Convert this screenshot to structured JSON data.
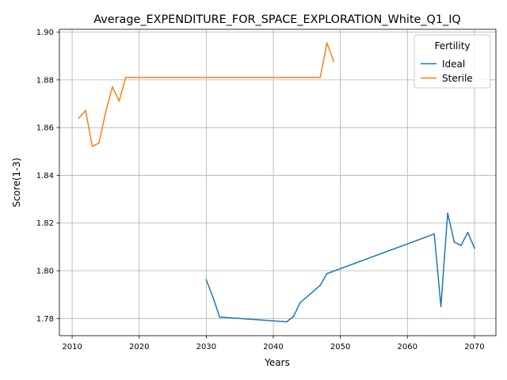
{
  "chart_data": {
    "type": "line",
    "title": "Average_EXPENDITURE_FOR_SPACE_EXPLORATION_White_Q1_IQ",
    "xlabel": "Years",
    "ylabel": "Score(1-3)",
    "xlim": [
      2008.1,
      2073.2
    ],
    "ylim": [
      1.7728,
      1.9012
    ],
    "xticks": [
      2010,
      2020,
      2030,
      2040,
      2050,
      2060,
      2070
    ],
    "yticks": [
      1.78,
      1.8,
      1.82,
      1.84,
      1.86,
      1.88,
      1.9
    ],
    "ytick_labels": [
      "1.78",
      "1.80",
      "1.82",
      "1.84",
      "1.86",
      "1.88",
      "1.90"
    ],
    "grid": true,
    "legend": {
      "title": "Fertility",
      "placement": "top-right"
    },
    "series": [
      {
        "name": "Ideal",
        "color": "#1f77b4",
        "x": [
          2030,
          2031,
          2032,
          2042,
          2043,
          2044,
          2047,
          2048,
          2064,
          2065,
          2066,
          2067,
          2068,
          2069,
          2070
        ],
        "y": [
          1.7962,
          1.7889,
          1.7806,
          1.7786,
          1.7808,
          1.7866,
          1.7939,
          1.7988,
          1.8154,
          1.785,
          1.8241,
          1.812,
          1.8106,
          1.8161,
          1.8095
        ]
      },
      {
        "name": "Sterile",
        "color": "#ff7f0e",
        "x": [
          2011,
          2012,
          2013,
          2014,
          2015,
          2016,
          2017,
          2018,
          2047,
          2048,
          2049
        ],
        "y": [
          1.864,
          1.8672,
          1.8522,
          1.8535,
          1.8665,
          1.8771,
          1.8711,
          1.881,
          1.881,
          1.8955,
          1.8878
        ]
      }
    ]
  }
}
